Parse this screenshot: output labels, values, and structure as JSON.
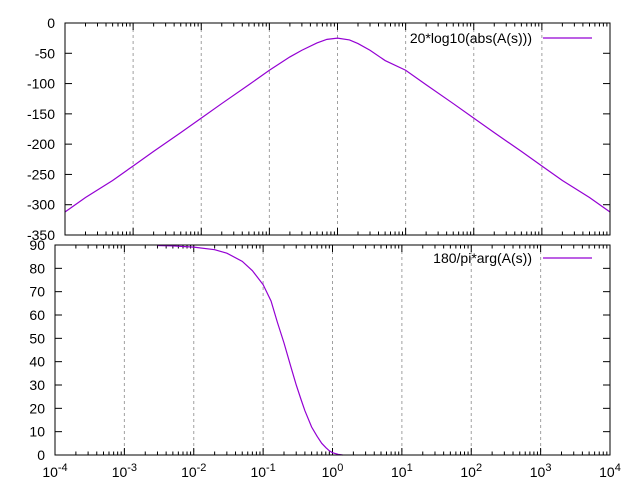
{
  "chart_data": [
    {
      "type": "line",
      "title": "",
      "xlabel": "",
      "ylabel": "",
      "xscale": "log",
      "xlim": [
        0.0001,
        10000
      ],
      "ylim": [
        -350,
        0
      ],
      "yticks": [
        0,
        -50,
        -100,
        -150,
        -200,
        -250,
        -300,
        -350
      ],
      "ytick_labels": [
        "0",
        "-50",
        "-100",
        "-150",
        "-200",
        "-250",
        "-300",
        "-350"
      ],
      "xtick_labels": [],
      "grid": "x-only",
      "legend": "top-right",
      "series": [
        {
          "name": "20*log10(abs(A(s)))",
          "color": "#9400d3",
          "x": [
            0.0001,
            0.0002,
            0.0005,
            0.001,
            0.002,
            0.005,
            0.01,
            0.02,
            0.05,
            0.1,
            0.2,
            0.3,
            0.5,
            0.7,
            1,
            1.5,
            2,
            3,
            5,
            10,
            20,
            50,
            100,
            200,
            500,
            1000,
            2000,
            5000,
            10000
          ],
          "y": [
            -312,
            -288,
            -260,
            -236,
            -212,
            -181,
            -157,
            -133,
            -102,
            -78,
            -56,
            -45,
            -33,
            -27,
            -25,
            -28,
            -34,
            -45,
            -62,
            -78,
            -102,
            -133,
            -157,
            -181,
            -212,
            -236,
            -260,
            -288,
            -312
          ]
        }
      ]
    },
    {
      "type": "line",
      "title": "",
      "xlabel": "",
      "ylabel": "",
      "xscale": "log",
      "xlim": [
        0.0001,
        10000
      ],
      "ylim": [
        0,
        90
      ],
      "yticks": [
        0,
        10,
        20,
        30,
        40,
        50,
        60,
        70,
        80,
        90
      ],
      "ytick_labels": [
        "0",
        "10",
        "20",
        "30",
        "40",
        "50",
        "60",
        "70",
        "80",
        "90"
      ],
      "xtick_labels": [
        {
          "base": "10",
          "exp": "-4"
        },
        {
          "base": "10",
          "exp": "-3"
        },
        {
          "base": "10",
          "exp": "-2"
        },
        {
          "base": "10",
          "exp": "-1"
        },
        {
          "base": "10",
          "exp": "0"
        },
        {
          "base": "10",
          "exp": "1"
        },
        {
          "base": "10",
          "exp": "2"
        },
        {
          "base": "10",
          "exp": "3"
        },
        {
          "base": "10",
          "exp": "4"
        }
      ],
      "grid": "x-only",
      "legend": "top-right",
      "series": [
        {
          "name": "180/pi*arg(A(s))",
          "color": "#9400d3",
          "x": [
            0.003,
            0.005,
            0.01,
            0.02,
            0.03,
            0.05,
            0.07,
            0.1,
            0.13,
            0.16,
            0.2,
            0.25,
            0.3,
            0.35,
            0.4,
            0.5,
            0.6,
            0.7,
            0.8,
            0.9,
            1,
            1.1,
            1.2,
            1.4
          ],
          "y": [
            89.8,
            89.6,
            89.1,
            88.0,
            86.5,
            83.0,
            79.0,
            73.0,
            66.0,
            57.0,
            48.0,
            38.0,
            30.0,
            24.0,
            19.0,
            12.0,
            8.0,
            5.0,
            3.2,
            1.8,
            1.0,
            0.6,
            0.3,
            0.0
          ]
        }
      ]
    }
  ]
}
